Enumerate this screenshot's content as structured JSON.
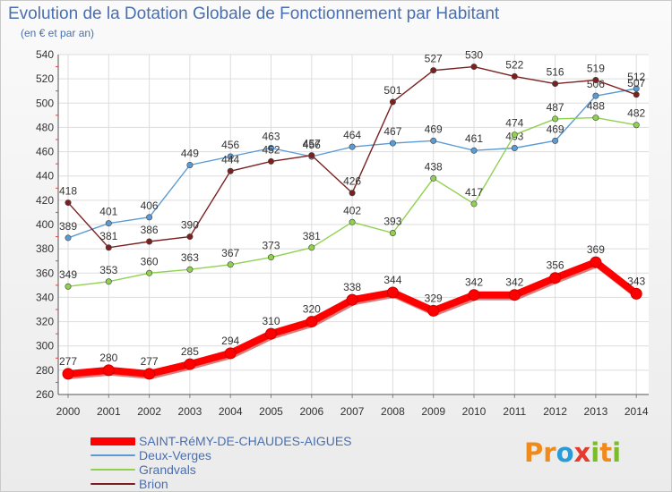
{
  "header": {
    "title": "Evolution de la Dotation Globale de Fonctionnement par Habitant",
    "subtitle": "(en € et par an)"
  },
  "logo": {
    "text": "Proxiti",
    "letters": [
      {
        "char": "P",
        "color": "#f18a1c"
      },
      {
        "char": "r",
        "color": "#f18a1c"
      },
      {
        "char": "o",
        "color": "#2b9bd6"
      },
      {
        "char": "x",
        "color": "#e63a2e"
      },
      {
        "char": "i",
        "color": "#7cbc2a"
      },
      {
        "char": "t",
        "color": "#f18a1c"
      },
      {
        "char": "i",
        "color": "#7cbc2a"
      }
    ]
  },
  "chart_data": {
    "type": "line",
    "title": "Evolution de la Dotation Globale de Fonctionnement par Habitant",
    "subtitle": "(en € et par an)",
    "xlabel": "",
    "ylabel": "",
    "x": [
      "2000",
      "2001",
      "2002",
      "2003",
      "2004",
      "2005",
      "2006",
      "2007",
      "2008",
      "2009",
      "2010",
      "2011",
      "2012",
      "2013",
      "2014"
    ],
    "ylim": [
      260,
      540
    ],
    "yticks": [
      260,
      280,
      300,
      320,
      340,
      360,
      380,
      400,
      420,
      440,
      460,
      480,
      500,
      520,
      540
    ],
    "grid": true,
    "legend_position": "bottom-left",
    "series": [
      {
        "name": "SAINT-RéMY-DE-CHAUDES-AIGUES",
        "color": "#ff0000",
        "emphasis": true,
        "values": [
          277,
          280,
          277,
          285,
          294,
          310,
          320,
          338,
          344,
          329,
          342,
          342,
          356,
          369,
          343
        ]
      },
      {
        "name": "Deux-Verges",
        "color": "#5b9bd5",
        "emphasis": false,
        "values": [
          389,
          401,
          406,
          449,
          456,
          463,
          456,
          464,
          467,
          469,
          461,
          463,
          469,
          506,
          512
        ]
      },
      {
        "name": "Grandvals",
        "color": "#8fd14f",
        "emphasis": false,
        "values": [
          349,
          353,
          360,
          363,
          367,
          373,
          381,
          402,
          393,
          438,
          417,
          474,
          487,
          488,
          482
        ]
      },
      {
        "name": "Brion",
        "color": "#7b2020",
        "emphasis": false,
        "values": [
          418,
          381,
          386,
          390,
          444,
          452,
          457,
          426,
          501,
          527,
          530,
          522,
          516,
          519,
          507
        ]
      }
    ]
  }
}
